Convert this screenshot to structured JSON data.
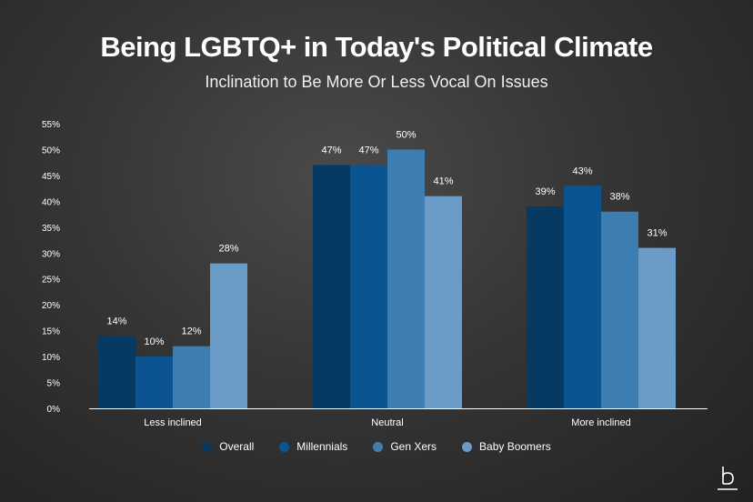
{
  "chart_data": {
    "type": "bar",
    "title": "Being LGBTQ+ in Today's Political Climate",
    "subtitle": "Inclination to Be More Or Less Vocal On Issues",
    "categories": [
      "Less inclined",
      "Neutral",
      "More inclined"
    ],
    "series": [
      {
        "name": "Overall",
        "values": [
          14,
          47,
          39
        ],
        "color": "#063a63"
      },
      {
        "name": "Millennials",
        "values": [
          10,
          47,
          43
        ],
        "color": "#0a5591"
      },
      {
        "name": "Gen Xers",
        "values": [
          12,
          50,
          38
        ],
        "color": "#3d7eb2"
      },
      {
        "name": "Baby Boomers",
        "values": [
          28,
          41,
          31
        ],
        "color": "#6a9cc7"
      }
    ],
    "ylim": [
      0,
      55
    ],
    "yticks": [
      "0%",
      "5%",
      "10%",
      "15%",
      "20%",
      "25%",
      "30%",
      "35%",
      "40%",
      "45%",
      "50%",
      "55%"
    ],
    "value_suffix": "%",
    "legend_position": "bottom",
    "grid": false
  }
}
